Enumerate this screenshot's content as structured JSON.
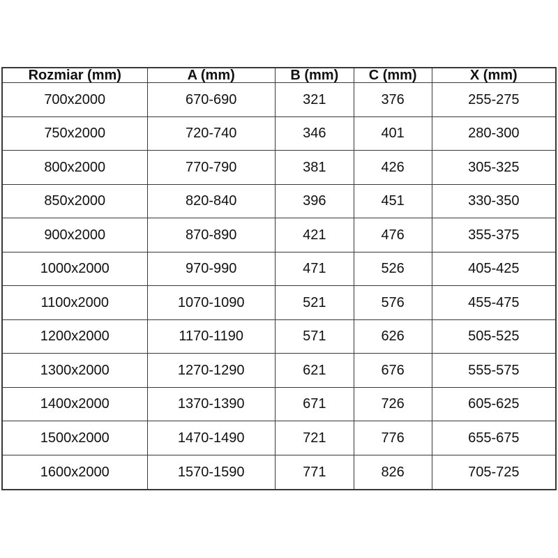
{
  "table": {
    "headers": [
      "Rozmiar (mm)",
      "A (mm)",
      "B (mm)",
      "C (mm)",
      "X (mm)"
    ],
    "rows": [
      [
        "700x2000",
        "670-690",
        "321",
        "376",
        "255-275"
      ],
      [
        "750x2000",
        "720-740",
        "346",
        "401",
        "280-300"
      ],
      [
        "800x2000",
        "770-790",
        "381",
        "426",
        "305-325"
      ],
      [
        "850x2000",
        "820-840",
        "396",
        "451",
        "330-350"
      ],
      [
        "900x2000",
        "870-890",
        "421",
        "476",
        "355-375"
      ],
      [
        "1000x2000",
        "970-990",
        "471",
        "526",
        "405-425"
      ],
      [
        "1100x2000",
        "1070-1090",
        "521",
        "576",
        "455-475"
      ],
      [
        "1200x2000",
        "1170-1190",
        "571",
        "626",
        "505-525"
      ],
      [
        "1300x2000",
        "1270-1290",
        "621",
        "676",
        "555-575"
      ],
      [
        "1400x2000",
        "1370-1390",
        "671",
        "726",
        "605-625"
      ],
      [
        "1500x2000",
        "1470-1490",
        "721",
        "776",
        "655-675"
      ],
      [
        "1600x2000",
        "1570-1590",
        "771",
        "826",
        "705-725"
      ]
    ],
    "column_widths_percent": [
      26.2,
      23.1,
      14.2,
      14.1,
      22.4
    ],
    "colors": {
      "border": "#383838",
      "text": "#111111",
      "background": "#ffffff"
    }
  },
  "chart_data": {
    "type": "table",
    "title": "",
    "columns": [
      "Rozmiar (mm)",
      "A (mm)",
      "B (mm)",
      "C (mm)",
      "X (mm)"
    ],
    "rows": [
      [
        "700x2000",
        "670-690",
        321,
        376,
        "255-275"
      ],
      [
        "750x2000",
        "720-740",
        346,
        401,
        "280-300"
      ],
      [
        "800x2000",
        "770-790",
        381,
        426,
        "305-325"
      ],
      [
        "850x2000",
        "820-840",
        396,
        451,
        "330-350"
      ],
      [
        "900x2000",
        "870-890",
        421,
        476,
        "355-375"
      ],
      [
        "1000x2000",
        "970-990",
        471,
        526,
        "405-425"
      ],
      [
        "1100x2000",
        "1070-1090",
        521,
        576,
        "455-475"
      ],
      [
        "1200x2000",
        "1170-1190",
        571,
        626,
        "505-525"
      ],
      [
        "1300x2000",
        "1270-1290",
        621,
        676,
        "555-575"
      ],
      [
        "1400x2000",
        "1370-1390",
        671,
        726,
        "605-625"
      ],
      [
        "1500x2000",
        "1470-1490",
        721,
        776,
        "655-675"
      ],
      [
        "1600x2000",
        "1570-1590",
        771,
        826,
        "705-725"
      ]
    ]
  }
}
